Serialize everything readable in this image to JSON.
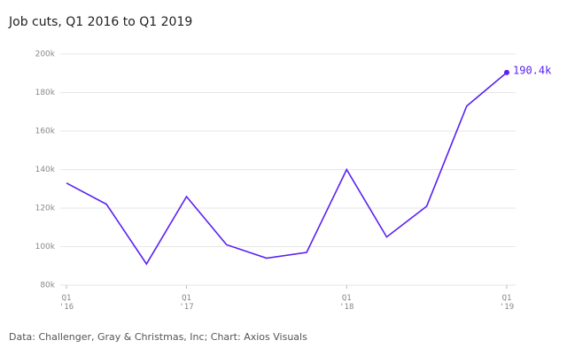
{
  "chart_data": {
    "type": "line",
    "title": "Job cuts, Q1 2016 to Q1 2019",
    "source": "Data: Challenger, Gray & Christmas, Inc; Chart: Axios Visuals",
    "categories": [
      "Q1\n'16",
      null,
      null,
      "Q1\n'17",
      null,
      null,
      null,
      "Q1\n'18",
      null,
      null,
      null,
      "Q1\n'19"
    ],
    "series": [
      {
        "name": "Job cuts",
        "color": "#5b21f2",
        "values": [
          133,
          122,
          91,
          126,
          101,
          94,
          97,
          140,
          105,
          121,
          173,
          190.4
        ],
        "value_labels": [
          null,
          null,
          null,
          null,
          null,
          null,
          null,
          null,
          null,
          null,
          null,
          "190.4k"
        ]
      }
    ],
    "ylim": [
      80,
      200
    ],
    "yticks": [
      {
        "value": 80,
        "label": "80k"
      },
      {
        "value": 100,
        "label": "100k"
      },
      {
        "value": 120,
        "label": "120k"
      },
      {
        "value": 140,
        "label": "140k"
      },
      {
        "value": 160,
        "label": "160k"
      },
      {
        "value": 180,
        "label": "180k"
      },
      {
        "value": 200,
        "label": "200k"
      }
    ],
    "grid": true
  }
}
